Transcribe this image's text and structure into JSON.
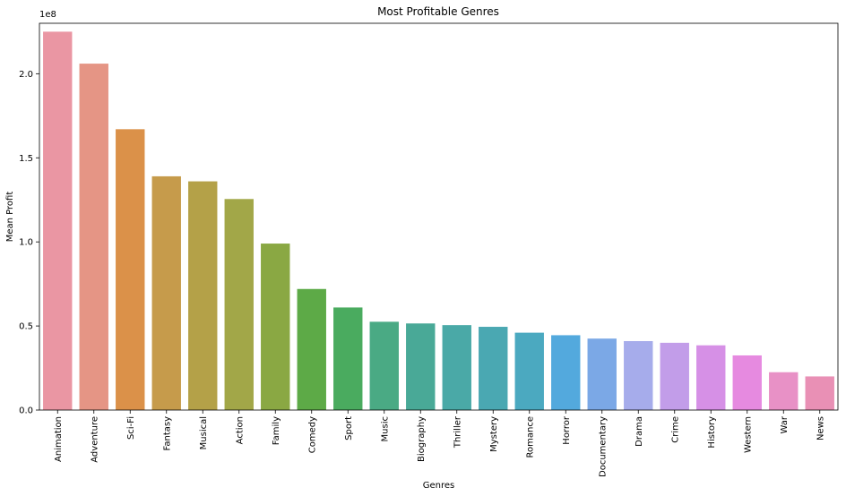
{
  "chart_data": {
    "type": "bar",
    "title": "Most Profitable Genres",
    "xlabel": "Genres",
    "ylabel": "Mean Profit",
    "offset_label": "1e8",
    "ylim": [
      0,
      230000000
    ],
    "yticks": [
      0,
      50000000,
      100000000,
      150000000,
      200000000
    ],
    "ytick_labels": [
      "0.0",
      "0.5",
      "1.0",
      "1.5",
      "2.0"
    ],
    "grid": false,
    "categories": [
      "Animation",
      "Adventure",
      "Sci-Fi",
      "Fantasy",
      "Musical",
      "Action",
      "Family",
      "Comedy",
      "Sport",
      "Music",
      "Biography",
      "Thriller",
      "Mystery",
      "Romance",
      "Horror",
      "Documentary",
      "Drama",
      "Crime",
      "History",
      "Western",
      "War",
      "News"
    ],
    "values": [
      225000000,
      206000000,
      167000000,
      139000000,
      136000000,
      125500000,
      99000000,
      72000000,
      61000000,
      52500000,
      51500000,
      50500000,
      49500000,
      46000000,
      44500000,
      42500000,
      41000000,
      40000000,
      38500000,
      32500000,
      22500000,
      20000000
    ],
    "colors": [
      "#ea96a3",
      "#e59585",
      "#db9149",
      "#c69b4b",
      "#b4a148",
      "#a2a748",
      "#8aa843",
      "#5daa47",
      "#4aab5f",
      "#4aaa84",
      "#49a997",
      "#4aa9a7",
      "#4aa8b2",
      "#4ba9c0",
      "#53a9dd",
      "#7ba8e6",
      "#a6aceb",
      "#c29de9",
      "#d690e6",
      "#e68ae0",
      "#e891c6",
      "#e990b5"
    ]
  }
}
